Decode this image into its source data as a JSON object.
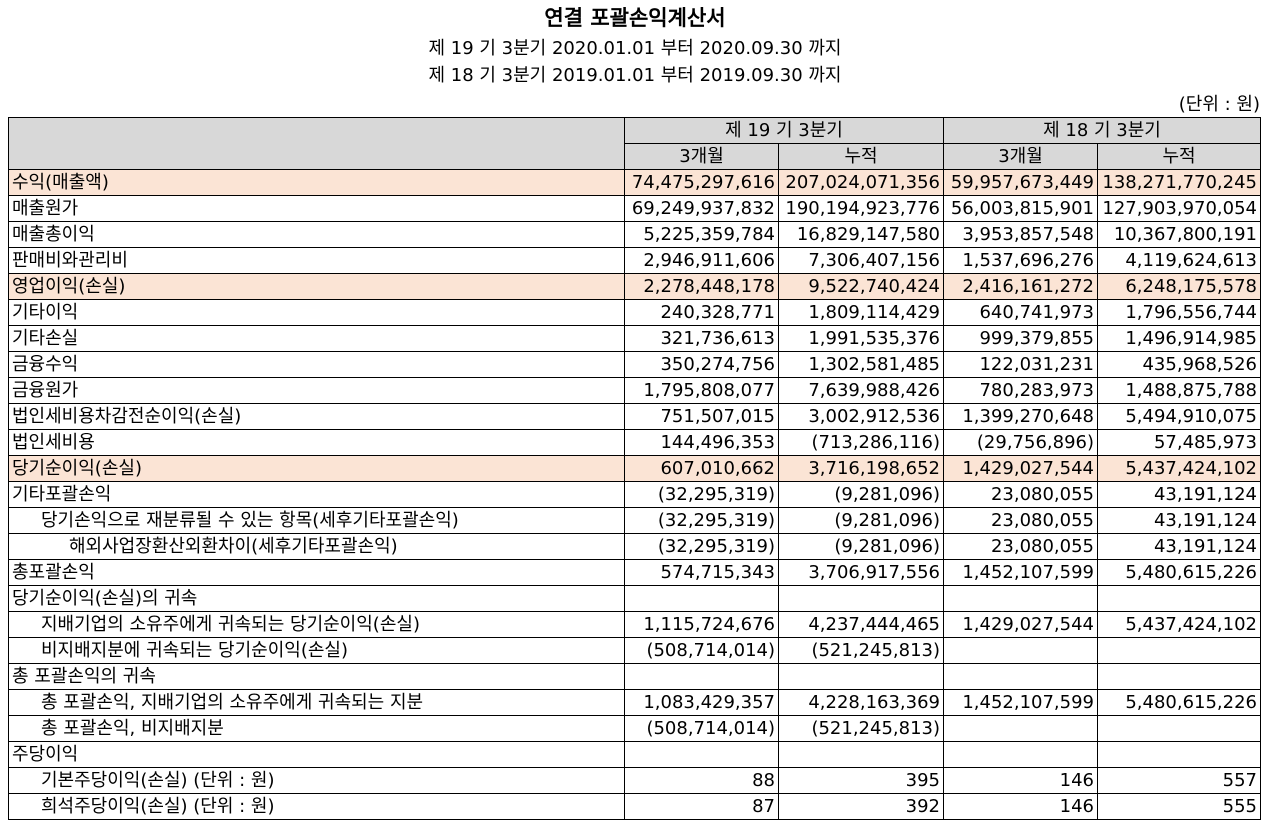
{
  "header": {
    "title": "연결 포괄손익계산서",
    "period_current": "제 19 기 3분기 2020.01.01 부터 2020.09.30 까지",
    "period_prior": "제 18 기 3분기 2019.01.01 부터 2019.09.30 까지",
    "unit": "(단위 : 원)"
  },
  "table": {
    "group_headers": [
      "제 19 기 3분기",
      "제 18 기 3분기"
    ],
    "sub_headers": [
      "3개월",
      "누적",
      "3개월",
      "누적"
    ],
    "rows": [
      {
        "label": "수익(매출액)",
        "v": [
          "74,475,297,616",
          "207,024,071,356",
          "59,957,673,449",
          "138,271,770,245"
        ]
      },
      {
        "label": "매출원가",
        "v": [
          "69,249,937,832",
          "190,194,923,776",
          "56,003,815,901",
          "127,903,970,054"
        ]
      },
      {
        "label": "매출총이익",
        "v": [
          "5,225,359,784",
          "16,829,147,580",
          "3,953,857,548",
          "10,367,800,191"
        ]
      },
      {
        "label": "판매비와관리비",
        "v": [
          "2,946,911,606",
          "7,306,407,156",
          "1,537,696,276",
          "4,119,624,613"
        ]
      },
      {
        "label": "영업이익(손실)",
        "v": [
          "2,278,448,178",
          "9,522,740,424",
          "2,416,161,272",
          "6,248,175,578"
        ]
      },
      {
        "label": "기타이익",
        "v": [
          "240,328,771",
          "1,809,114,429",
          "640,741,973",
          "1,796,556,744"
        ]
      },
      {
        "label": "기타손실",
        "v": [
          "321,736,613",
          "1,991,535,376",
          "999,379,855",
          "1,496,914,985"
        ]
      },
      {
        "label": "금융수익",
        "v": [
          "350,274,756",
          "1,302,581,485",
          "122,031,231",
          "435,968,526"
        ]
      },
      {
        "label": "금융원가",
        "v": [
          "1,795,808,077",
          "7,639,988,426",
          "780,283,973",
          "1,488,875,788"
        ]
      },
      {
        "label": "법인세비용차감전순이익(손실)",
        "v": [
          "751,507,015",
          "3,002,912,536",
          "1,399,270,648",
          "5,494,910,075"
        ]
      },
      {
        "label": "법인세비용",
        "v": [
          "144,496,353",
          "(713,286,116)",
          "(29,756,896)",
          "57,485,973"
        ]
      },
      {
        "label": "당기순이익(손실)",
        "v": [
          "607,010,662",
          "3,716,198,652",
          "1,429,027,544",
          "5,437,424,102"
        ]
      },
      {
        "label": "기타포괄손익",
        "v": [
          "(32,295,319)",
          "(9,281,096)",
          "23,080,055",
          "43,191,124"
        ]
      },
      {
        "label": "당기손익으로 재분류될 수 있는 항목(세후기타포괄손익)",
        "v": [
          "(32,295,319)",
          "(9,281,096)",
          "23,080,055",
          "43,191,124"
        ]
      },
      {
        "label": "해외사업장환산외환차이(세후기타포괄손익)",
        "v": [
          "(32,295,319)",
          "(9,281,096)",
          "23,080,055",
          "43,191,124"
        ]
      },
      {
        "label": "총포괄손익",
        "v": [
          "574,715,343",
          "3,706,917,556",
          "1,452,107,599",
          "5,480,615,226"
        ]
      },
      {
        "label": "당기순이익(손실)의 귀속",
        "v": [
          "",
          "",
          "",
          ""
        ]
      },
      {
        "label": "지배기업의 소유주에게 귀속되는 당기순이익(손실)",
        "v": [
          "1,115,724,676",
          "4,237,444,465",
          "1,429,027,544",
          "5,437,424,102"
        ]
      },
      {
        "label": "비지배지분에 귀속되는 당기순이익(손실)",
        "v": [
          "(508,714,014)",
          "(521,245,813)",
          "",
          ""
        ]
      },
      {
        "label": "총 포괄손익의 귀속",
        "v": [
          "",
          "",
          "",
          ""
        ]
      },
      {
        "label": "총 포괄손익, 지배기업의 소유주에게 귀속되는 지분",
        "v": [
          "1,083,429,357",
          "4,228,163,369",
          "1,452,107,599",
          "5,480,615,226"
        ]
      },
      {
        "label": "총 포괄손익, 비지배지분",
        "v": [
          "(508,714,014)",
          "(521,245,813)",
          "",
          ""
        ]
      },
      {
        "label": "주당이익",
        "v": [
          "",
          "",
          "",
          ""
        ]
      },
      {
        "label": "기본주당이익(손실) (단위 : 원)",
        "v": [
          "88",
          "395",
          "146",
          "557"
        ]
      },
      {
        "label": "희석주당이익(손실) (단위 : 원)",
        "v": [
          "87",
          "392",
          "146",
          "555"
        ]
      }
    ]
  }
}
